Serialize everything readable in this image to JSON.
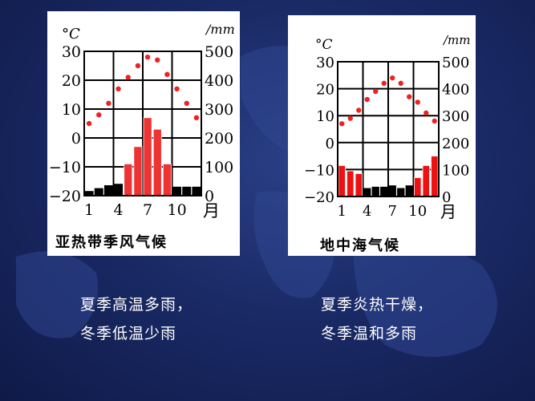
{
  "chart_data": [
    {
      "type": "bar-line",
      "title": "亚热带季风气候",
      "temp_unit": "°C",
      "precip_unit": "/mm",
      "month_unit": "月",
      "x_tick_labels": [
        "1",
        "4",
        "7",
        "10"
      ],
      "temp_ticks": [
        "30",
        "20",
        "10",
        "0",
        "−10",
        "−20"
      ],
      "precip_ticks": [
        "500",
        "400",
        "300",
        "200",
        "100",
        "0"
      ],
      "temp_range": [
        -20,
        30
      ],
      "precip_range": [
        0,
        500
      ],
      "months": [
        1,
        2,
        3,
        4,
        5,
        6,
        7,
        8,
        9,
        10,
        11,
        12
      ],
      "temperature": [
        5,
        8,
        12,
        17,
        21,
        25,
        28,
        27,
        22,
        17,
        12,
        7
      ],
      "precipitation": [
        15,
        25,
        35,
        40,
        110,
        170,
        270,
        230,
        110,
        30,
        30,
        30
      ],
      "bar_colors": [
        "#000000",
        "#000000",
        "#000000",
        "#000000",
        "#ee3333",
        "#ee3333",
        "#ee3333",
        "#ee3333",
        "#ee3333",
        "#000000",
        "#000000",
        "#000000"
      ],
      "grid": true
    },
    {
      "type": "bar-line",
      "title": "地中海气候",
      "temp_unit": "°C",
      "precip_unit": "/mm",
      "month_unit": "月",
      "x_tick_labels": [
        "1",
        "4",
        "7",
        "10"
      ],
      "temp_ticks": [
        "30",
        "20",
        "10",
        "0",
        "−10",
        "−20"
      ],
      "precip_ticks": [
        "500",
        "400",
        "300",
        "200",
        "100",
        "0"
      ],
      "temp_range": [
        -20,
        30
      ],
      "precip_range": [
        0,
        500
      ],
      "months": [
        1,
        2,
        3,
        4,
        5,
        6,
        7,
        8,
        9,
        10,
        11,
        12
      ],
      "temperature": [
        7,
        9,
        12,
        16,
        19,
        22,
        24,
        22,
        17,
        15,
        11,
        8
      ],
      "precipitation": [
        115,
        95,
        85,
        30,
        35,
        35,
        40,
        30,
        40,
        70,
        115,
        150
      ],
      "bar_colors": [
        "#ee1111",
        "#ee1111",
        "#ee1111",
        "#000000",
        "#000000",
        "#000000",
        "#000000",
        "#000000",
        "#000000",
        "#ee1111",
        "#ee1111",
        "#ee1111"
      ],
      "grid": true
    }
  ],
  "captions": {
    "left": [
      "夏季高温多雨，",
      "冬季低温少雨"
    ],
    "right": [
      "夏季炎热干燥，",
      "冬季温和多雨"
    ]
  },
  "colors": {
    "background": "#1a2a66",
    "temperature_point": "#ee2222",
    "wet_bar": "#ee1111",
    "dry_bar": "#000000",
    "caption_text": "#ffffff"
  }
}
